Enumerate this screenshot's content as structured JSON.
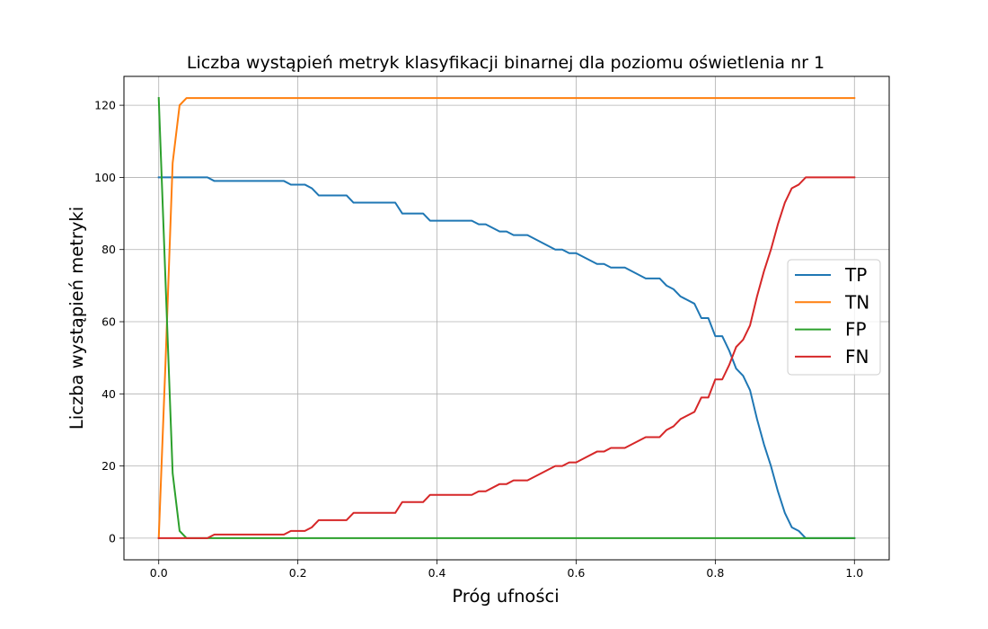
{
  "chart_data": {
    "type": "line",
    "title": "Liczba wystąpień metryk klasyfikacji binarnej dla poziomu oświetlenia nr 1",
    "xlabel": "Próg ufności",
    "ylabel": "Liczba wystąpień metryki",
    "xlim": [
      -0.05,
      1.05
    ],
    "ylim": [
      -6,
      128
    ],
    "xticks": [
      0.0,
      0.2,
      0.4,
      0.6,
      0.8,
      1.0
    ],
    "xtick_labels": [
      "0.0",
      "0.2",
      "0.4",
      "0.6",
      "0.8",
      "1.0"
    ],
    "yticks": [
      0,
      20,
      40,
      60,
      80,
      100,
      120
    ],
    "ytick_labels": [
      "0",
      "20",
      "40",
      "60",
      "80",
      "100",
      "120"
    ],
    "grid": true,
    "legend_position": "center-right",
    "series": [
      {
        "name": "TP",
        "color": "#1f77b4",
        "points": [
          [
            0.0,
            100
          ],
          [
            0.07,
            100
          ],
          [
            0.08,
            99
          ],
          [
            0.18,
            99
          ],
          [
            0.19,
            98
          ],
          [
            0.21,
            98
          ],
          [
            0.22,
            97
          ],
          [
            0.23,
            95
          ],
          [
            0.27,
            95
          ],
          [
            0.28,
            93
          ],
          [
            0.34,
            93
          ],
          [
            0.35,
            90
          ],
          [
            0.38,
            90
          ],
          [
            0.39,
            88
          ],
          [
            0.45,
            88
          ],
          [
            0.46,
            87
          ],
          [
            0.47,
            87
          ],
          [
            0.49,
            85
          ],
          [
            0.5,
            85
          ],
          [
            0.51,
            84
          ],
          [
            0.53,
            84
          ],
          [
            0.57,
            80
          ],
          [
            0.58,
            80
          ],
          [
            0.59,
            79
          ],
          [
            0.6,
            79
          ],
          [
            0.63,
            76
          ],
          [
            0.64,
            76
          ],
          [
            0.65,
            75
          ],
          [
            0.67,
            75
          ],
          [
            0.7,
            72
          ],
          [
            0.72,
            72
          ],
          [
            0.73,
            70
          ],
          [
            0.74,
            69
          ],
          [
            0.75,
            67
          ],
          [
            0.77,
            65
          ],
          [
            0.78,
            61
          ],
          [
            0.79,
            61
          ],
          [
            0.8,
            56
          ],
          [
            0.81,
            56
          ],
          [
            0.82,
            52
          ],
          [
            0.83,
            47
          ],
          [
            0.84,
            45
          ],
          [
            0.85,
            41
          ],
          [
            0.86,
            33
          ],
          [
            0.87,
            26
          ],
          [
            0.88,
            20
          ],
          [
            0.89,
            13
          ],
          [
            0.9,
            7
          ],
          [
            0.91,
            3
          ],
          [
            0.92,
            2
          ],
          [
            0.93,
            0
          ],
          [
            1.0,
            0
          ]
        ]
      },
      {
        "name": "TN",
        "color": "#ff7f0e",
        "points": [
          [
            0.0,
            0
          ],
          [
            0.01,
            50
          ],
          [
            0.02,
            104
          ],
          [
            0.03,
            120
          ],
          [
            0.04,
            122
          ],
          [
            1.0,
            122
          ]
        ]
      },
      {
        "name": "FP",
        "color": "#2ca02c",
        "points": [
          [
            0.0,
            122
          ],
          [
            0.01,
            70
          ],
          [
            0.02,
            18
          ],
          [
            0.03,
            2
          ],
          [
            0.04,
            0
          ],
          [
            1.0,
            0
          ]
        ]
      },
      {
        "name": "FN",
        "color": "#d62728",
        "points": [
          [
            0.0,
            0
          ],
          [
            0.07,
            0
          ],
          [
            0.08,
            1
          ],
          [
            0.18,
            1
          ],
          [
            0.19,
            2
          ],
          [
            0.21,
            2
          ],
          [
            0.22,
            3
          ],
          [
            0.23,
            5
          ],
          [
            0.27,
            5
          ],
          [
            0.28,
            7
          ],
          [
            0.34,
            7
          ],
          [
            0.35,
            10
          ],
          [
            0.38,
            10
          ],
          [
            0.39,
            12
          ],
          [
            0.45,
            12
          ],
          [
            0.46,
            13
          ],
          [
            0.47,
            13
          ],
          [
            0.49,
            15
          ],
          [
            0.5,
            15
          ],
          [
            0.51,
            16
          ],
          [
            0.53,
            16
          ],
          [
            0.57,
            20
          ],
          [
            0.58,
            20
          ],
          [
            0.59,
            21
          ],
          [
            0.6,
            21
          ],
          [
            0.63,
            24
          ],
          [
            0.64,
            24
          ],
          [
            0.65,
            25
          ],
          [
            0.67,
            25
          ],
          [
            0.7,
            28
          ],
          [
            0.72,
            28
          ],
          [
            0.73,
            30
          ],
          [
            0.74,
            31
          ],
          [
            0.75,
            33
          ],
          [
            0.77,
            35
          ],
          [
            0.78,
            39
          ],
          [
            0.79,
            39
          ],
          [
            0.8,
            44
          ],
          [
            0.81,
            44
          ],
          [
            0.82,
            48
          ],
          [
            0.83,
            53
          ],
          [
            0.84,
            55
          ],
          [
            0.85,
            59
          ],
          [
            0.86,
            67
          ],
          [
            0.87,
            74
          ],
          [
            0.88,
            80
          ],
          [
            0.89,
            87
          ],
          [
            0.9,
            93
          ],
          [
            0.91,
            97
          ],
          [
            0.92,
            98
          ],
          [
            0.93,
            100
          ],
          [
            1.0,
            100
          ]
        ]
      }
    ]
  }
}
